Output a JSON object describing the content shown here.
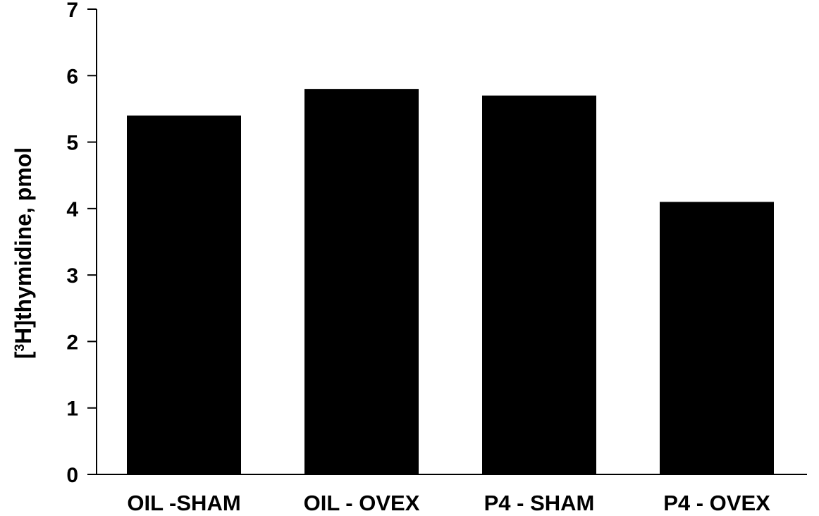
{
  "chart_data": {
    "type": "bar",
    "categories": [
      "OIL -SHAM",
      "OIL - OVEX",
      "P4 - SHAM",
      "P4 - OVEX"
    ],
    "values": [
      5.4,
      5.8,
      5.7,
      4.1
    ],
    "title": "",
    "xlabel": "",
    "ylabel": {
      "prefix": "[",
      "superscript": "3",
      "suffix": "H]thymidine, pmol"
    },
    "ylim": [
      0,
      7
    ],
    "yticks": [
      "0",
      "1",
      "2",
      "3",
      "4",
      "5",
      "6",
      "7"
    ],
    "grid": false,
    "legend": "none",
    "colors": {
      "bar": "#000000",
      "axis": "#000000",
      "background": "#ffffff"
    }
  }
}
